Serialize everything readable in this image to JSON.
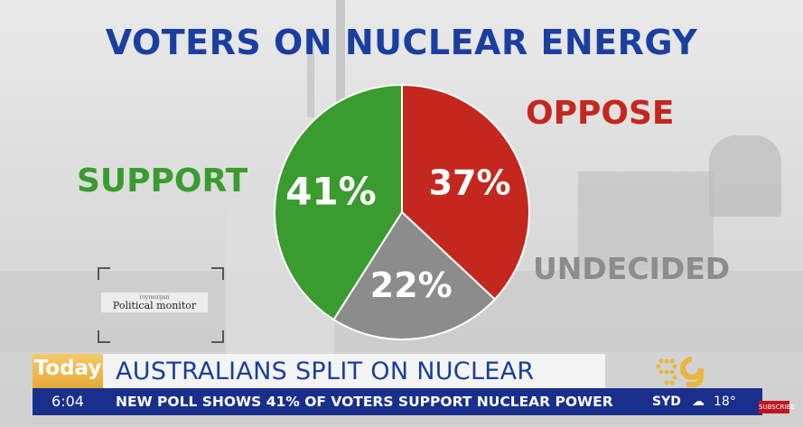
{
  "chart_data": {
    "type": "pie",
    "title": "VOTERS ON NUCLEAR ENERGY",
    "slices": [
      {
        "label": "OPPOSE",
        "value": 37,
        "display": "37%",
        "color": "#c4271e"
      },
      {
        "label": "UNDECIDED",
        "value": 22,
        "display": "22%",
        "color": "#8c8c8c"
      },
      {
        "label": "SUPPORT",
        "value": 41,
        "display": "41%",
        "color": "#3a9b2f"
      }
    ]
  },
  "watermark": {
    "small": "roymorgan",
    "text": "Political monitor"
  },
  "broadcast": {
    "logo": "Today",
    "time": "6:04",
    "headline": "AUSTRALIANS SPLIT ON NUCLEAR",
    "subline": "NEW POLL SHOWS 41% OF VOTERS SUPPORT NUCLEAR POWER",
    "weather": {
      "city": "SYD",
      "temp": "18°",
      "icon": "cloud-sun-icon"
    },
    "subscribe": "SUBSCRIBE"
  }
}
